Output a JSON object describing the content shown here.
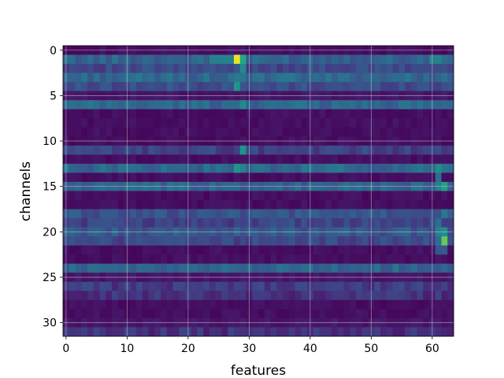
{
  "chart_data": {
    "type": "heatmap",
    "title": "",
    "xlabel": "features",
    "ylabel": "channels",
    "xlim": [
      -0.5,
      63.5
    ],
    "ylim": [
      31.5,
      -0.5
    ],
    "x_ticks": [
      0,
      10,
      20,
      30,
      40,
      50,
      60
    ],
    "y_ticks": [
      0,
      5,
      10,
      15,
      20,
      25,
      30
    ],
    "grid": true,
    "colormap": "viridis",
    "n_rows": 32,
    "n_cols": 64,
    "row_levels": [
      0.05,
      0.4,
      0.28,
      0.42,
      0.3,
      0.08,
      0.42,
      0.05,
      0.05,
      0.05,
      0.05,
      0.25,
      0.05,
      0.42,
      0.05,
      0.4,
      0.05,
      0.05,
      0.32,
      0.25,
      0.35,
      0.28,
      0.05,
      0.05,
      0.4,
      0.08,
      0.22,
      0.18,
      0.05,
      0.05,
      0.08,
      0.18
    ],
    "hotspots": [
      {
        "row": 1,
        "col": 28,
        "value": 0.98
      },
      {
        "row": 1,
        "col": 29,
        "value": 0.75
      },
      {
        "row": 1,
        "col": 27,
        "value": 0.55
      },
      {
        "row": 1,
        "col": 24,
        "value": 0.55
      },
      {
        "row": 1,
        "col": 25,
        "value": 0.55
      },
      {
        "row": 1,
        "col": 26,
        "value": 0.55
      },
      {
        "row": 1,
        "col": 60,
        "value": 0.55
      },
      {
        "row": 1,
        "col": 61,
        "value": 0.55
      },
      {
        "row": 2,
        "col": 28,
        "value": 0.35
      },
      {
        "row": 2,
        "col": 29,
        "value": 0.6
      },
      {
        "row": 3,
        "col": 28,
        "value": 0.5
      },
      {
        "row": 4,
        "col": 28,
        "value": 0.65
      },
      {
        "row": 6,
        "col": 29,
        "value": 0.6
      },
      {
        "row": 11,
        "col": 29,
        "value": 0.65
      },
      {
        "row": 13,
        "col": 28,
        "value": 0.65
      },
      {
        "row": 13,
        "col": 29,
        "value": 0.55
      },
      {
        "row": 13,
        "col": 61,
        "value": 0.6
      },
      {
        "row": 14,
        "col": 61,
        "value": 0.45
      },
      {
        "row": 15,
        "col": 62,
        "value": 0.72
      },
      {
        "row": 15,
        "col": 61,
        "value": 0.55
      },
      {
        "row": 18,
        "col": 62,
        "value": 0.5
      },
      {
        "row": 19,
        "col": 61,
        "value": 0.45
      },
      {
        "row": 20,
        "col": 62,
        "value": 0.62
      },
      {
        "row": 20,
        "col": 61,
        "value": 0.55
      },
      {
        "row": 21,
        "col": 62,
        "value": 0.85
      },
      {
        "row": 21,
        "col": 61,
        "value": 0.45
      },
      {
        "row": 22,
        "col": 61,
        "value": 0.35
      },
      {
        "row": 22,
        "col": 62,
        "value": 0.35
      }
    ]
  }
}
